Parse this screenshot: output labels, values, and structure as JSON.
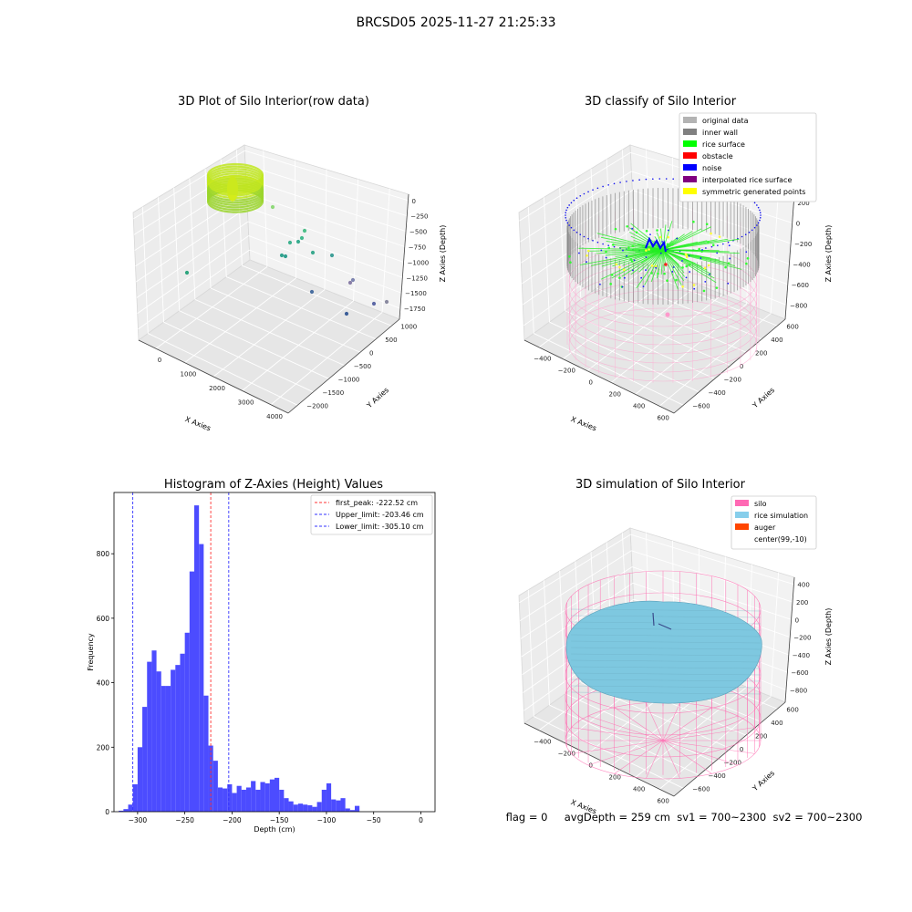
{
  "suptitle": "BRCSD05 2025-11-27 21:25:33",
  "footer": "flag = 0     avgDepth = 259 cm  sv1 = 700~2300  sv2 = 700~2300",
  "chart_data": [
    {
      "type": "scatter",
      "title": "3D Plot of Silo Interior(row data)",
      "xlabel": "X Axies",
      "ylabel": "Y Axies",
      "zlabel": "Z Axies (Depth)",
      "xticks": [
        "0",
        "1000",
        "2000",
        "3000",
        "4000"
      ],
      "yticks": [
        "1000",
        "500",
        "0",
        "−500",
        "−1000",
        "−1500",
        "−2000"
      ],
      "zticks": [
        "0",
        "−250",
        "−500",
        "−750",
        "−1000",
        "−1250",
        "−1500",
        "−1750"
      ]
    },
    {
      "type": "scatter",
      "title": "3D classify of Silo Interior",
      "xlabel": "X Axies",
      "ylabel": "Y Axies",
      "zlabel": "Z Axies (Depth)",
      "xticks": [
        "−400",
        "−200",
        "0",
        "200",
        "400",
        "600"
      ],
      "yticks": [
        "600",
        "400",
        "200",
        "0",
        "−200",
        "−400",
        "−600"
      ],
      "zticks": [
        "200",
        "0",
        "−200",
        "−400",
        "−600",
        "−800"
      ],
      "legend": [
        {
          "label": "original data",
          "color": "#b3b3b3"
        },
        {
          "label": "inner wall",
          "color": "#808080"
        },
        {
          "label": "rice surface",
          "color": "#00ff00"
        },
        {
          "label": "obstacle",
          "color": "#ff0000"
        },
        {
          "label": "noise",
          "color": "#0000ff"
        },
        {
          "label": "interpolated rice surface",
          "color": "#800080"
        },
        {
          "label": "symmetric generated points",
          "color": "#ffff00"
        }
      ],
      "legend_position": "top-right"
    },
    {
      "type": "bar",
      "title": "Histogram of Z-Axies (Height) Values",
      "xlabel": "Depth (cm)",
      "ylabel": "Frequency",
      "xlim": [
        -325,
        15
      ],
      "ylim": [
        0,
        990
      ],
      "xticks": [
        -300,
        -250,
        -200,
        -150,
        -100,
        -50,
        0
      ],
      "yticks": [
        0,
        200,
        400,
        600,
        800
      ],
      "bin_width": 5,
      "bin_starts": [
        -320,
        -315,
        -310,
        -305,
        -300,
        -295,
        -290,
        -285,
        -280,
        -275,
        -270,
        -265,
        -260,
        -255,
        -250,
        -245,
        -240,
        -235,
        -230,
        -225,
        -220,
        -215,
        -210,
        -205,
        -200,
        -195,
        -190,
        -185,
        -180,
        -175,
        -170,
        -165,
        -160,
        -155,
        -150,
        -145,
        -140,
        -135,
        -130,
        -125,
        -120,
        -115,
        -110,
        -105,
        -100,
        -95,
        -90,
        -85,
        -80,
        -75,
        -70,
        -65,
        -60,
        -55,
        -50,
        -45,
        -40,
        -35,
        -30,
        -25,
        -20,
        -15,
        -10,
        -5,
        0
      ],
      "counts": [
        3,
        8,
        22,
        85,
        200,
        325,
        465,
        500,
        435,
        390,
        390,
        440,
        455,
        490,
        555,
        745,
        950,
        830,
        360,
        205,
        158,
        75,
        72,
        85,
        58,
        80,
        68,
        75,
        95,
        68,
        92,
        88,
        100,
        105,
        68,
        42,
        32,
        22,
        25,
        22,
        20,
        15,
        30,
        68,
        88,
        38,
        35,
        42,
        10,
        5,
        18,
        0,
        0,
        0,
        0,
        0,
        0,
        0,
        0,
        0,
        0,
        0,
        0,
        0,
        0
      ],
      "bar_color": "#4c4cff",
      "vlines": [
        {
          "label": "first_peak: -222.52 cm",
          "x": -222.52,
          "color": "#ff3333"
        },
        {
          "label": "Upper_limit: -203.46 cm",
          "x": -203.46,
          "color": "#3333ff"
        },
        {
          "label": "Lower_limit: -305.10 cm",
          "x": -305.1,
          "color": "#3333ff"
        }
      ],
      "legend_position": "top-right"
    },
    {
      "type": "scatter",
      "title": "3D simulation of Silo Interior",
      "xlabel": "X Axies",
      "ylabel": "Y Axies",
      "zlabel": "Z Axies (Depth)",
      "xticks": [
        "−400",
        "−200",
        "0",
        "200",
        "400",
        "600"
      ],
      "yticks": [
        "600",
        "400",
        "200",
        "0",
        "−200",
        "−400",
        "−600"
      ],
      "zticks": [
        "400",
        "200",
        "0",
        "−200",
        "−400",
        "−600",
        "−800"
      ],
      "legend": [
        {
          "label": "silo",
          "color": "#ff69b4"
        },
        {
          "label": "rice simulation",
          "color": "#87ceeb"
        },
        {
          "label": "auger",
          "color": "#ff4500"
        },
        {
          "label": "center(99,-10)",
          "color": ""
        }
      ],
      "legend_position": "top-right"
    }
  ]
}
